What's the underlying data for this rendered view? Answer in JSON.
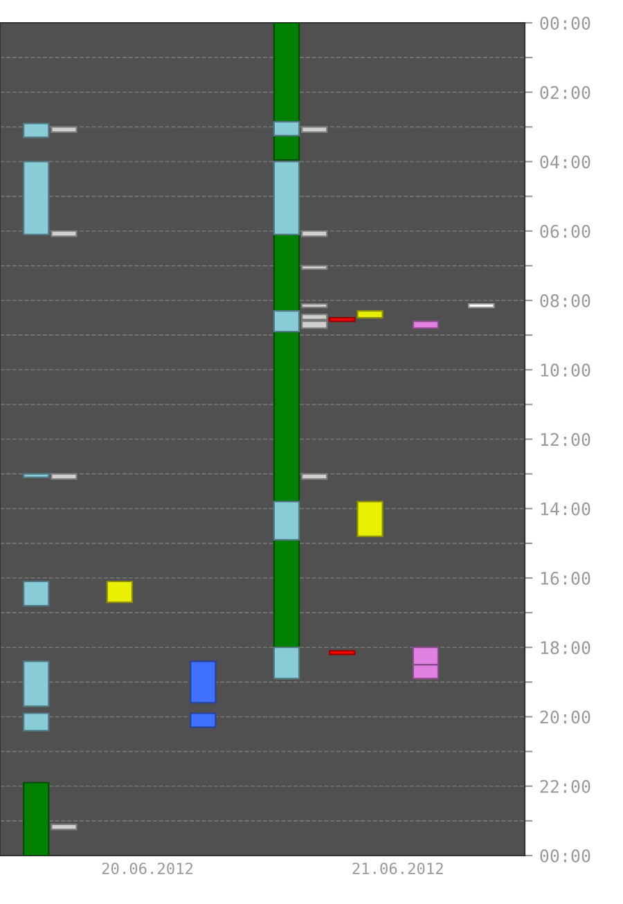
{
  "chart_data": {
    "type": "bar",
    "ylim": [
      24,
      0
    ],
    "grid": "y",
    "categories": [
      null,
      null,
      null,
      null,
      "20.06.2012",
      null,
      null,
      null,
      null,
      null,
      null,
      null,
      null,
      "21.06.2012",
      null,
      null,
      null,
      null
    ],
    "yticks": [
      {
        "value": 0,
        "label": "00:00"
      },
      {
        "value": 1,
        "label": null
      },
      {
        "value": 2,
        "label": "02:00"
      },
      {
        "value": 3,
        "label": null
      },
      {
        "value": 4,
        "label": "04:00"
      },
      {
        "value": 5,
        "label": null
      },
      {
        "value": 6,
        "label": "06:00"
      },
      {
        "value": 7,
        "label": null
      },
      {
        "value": 8,
        "label": "08:00"
      },
      {
        "value": 9,
        "label": null
      },
      {
        "value": 10,
        "label": "10:00"
      },
      {
        "value": 11,
        "label": null
      },
      {
        "value": 12,
        "label": "12:00"
      },
      {
        "value": 13,
        "label": null
      },
      {
        "value": 14,
        "label": "14:00"
      },
      {
        "value": 15,
        "label": null
      },
      {
        "value": 16,
        "label": "16:00"
      },
      {
        "value": 17,
        "label": null
      },
      {
        "value": 18,
        "label": "18:00"
      },
      {
        "value": 19,
        "label": null
      },
      {
        "value": 20,
        "label": "20:00"
      },
      {
        "value": 21,
        "label": null
      },
      {
        "value": 22,
        "label": "22:00"
      },
      {
        "value": 23,
        "label": null
      },
      {
        "value": 24,
        "label": "00:00"
      }
    ],
    "series": [
      {
        "color": "#008000",
        "base": [
          21.9,
          null,
          null,
          null,
          null,
          null,
          null,
          null,
          null,
          0,
          null,
          null,
          null,
          null,
          null,
          null,
          null,
          null
        ],
        "values": [
          2.1,
          null,
          null,
          null,
          null,
          null,
          null,
          null,
          null,
          2.85,
          null,
          null,
          null,
          null,
          null,
          null,
          null,
          null
        ]
      },
      {
        "color": "#008000",
        "base": [
          null,
          null,
          null,
          null,
          null,
          null,
          null,
          null,
          null,
          3.25,
          null,
          null,
          null,
          null,
          null,
          null,
          null,
          null
        ],
        "values": [
          null,
          null,
          null,
          null,
          null,
          null,
          null,
          null,
          null,
          0.7,
          null,
          null,
          null,
          null,
          null,
          null,
          null,
          null
        ]
      },
      {
        "color": "#008000",
        "base": [
          null,
          null,
          null,
          null,
          null,
          null,
          null,
          null,
          null,
          6.1,
          null,
          null,
          null,
          null,
          null,
          null,
          null,
          null
        ],
        "values": [
          null,
          null,
          null,
          null,
          null,
          null,
          null,
          null,
          null,
          2.2,
          null,
          null,
          null,
          null,
          null,
          null,
          null,
          null
        ]
      },
      {
        "color": "#008000",
        "base": [
          null,
          null,
          null,
          null,
          null,
          null,
          null,
          null,
          null,
          8.9,
          null,
          null,
          null,
          null,
          null,
          null,
          null,
          null
        ],
        "values": [
          null,
          null,
          null,
          null,
          null,
          null,
          null,
          null,
          null,
          4.9,
          null,
          null,
          null,
          null,
          null,
          null,
          null,
          null
        ]
      },
      {
        "color": "#008000",
        "base": [
          null,
          null,
          null,
          null,
          null,
          null,
          null,
          null,
          null,
          14.9,
          null,
          null,
          null,
          null,
          null,
          null,
          null,
          null
        ],
        "values": [
          null,
          null,
          null,
          null,
          null,
          null,
          null,
          null,
          null,
          3.1,
          null,
          null,
          null,
          null,
          null,
          null,
          null,
          null
        ]
      },
      {
        "color": "#88ccd8",
        "base": [
          2.9,
          null,
          null,
          null,
          null,
          null,
          null,
          null,
          null,
          2.85,
          null,
          null,
          null,
          null,
          null,
          null,
          null,
          null
        ],
        "values": [
          0.4,
          null,
          null,
          null,
          null,
          null,
          null,
          null,
          null,
          0.4,
          null,
          null,
          null,
          null,
          null,
          null,
          null,
          null
        ]
      },
      {
        "color": "#88ccd8",
        "base": [
          4.0,
          null,
          null,
          null,
          null,
          null,
          null,
          null,
          null,
          4.0,
          null,
          null,
          null,
          null,
          null,
          null,
          null,
          null
        ],
        "values": [
          2.1,
          null,
          null,
          null,
          null,
          null,
          null,
          null,
          null,
          2.1,
          null,
          null,
          null,
          null,
          null,
          null,
          null,
          null
        ]
      },
      {
        "color": "#88ccd8",
        "base": [
          13.0,
          null,
          null,
          null,
          null,
          null,
          null,
          null,
          null,
          8.3,
          null,
          null,
          null,
          null,
          null,
          null,
          null,
          null
        ],
        "values": [
          0.1,
          null,
          null,
          null,
          null,
          null,
          null,
          null,
          null,
          0.6,
          null,
          null,
          null,
          null,
          null,
          null,
          null,
          null
        ]
      },
      {
        "color": "#88ccd8",
        "base": [
          16.1,
          null,
          null,
          null,
          null,
          null,
          null,
          null,
          null,
          13.8,
          null,
          null,
          null,
          null,
          null,
          null,
          null,
          null
        ],
        "values": [
          0.7,
          null,
          null,
          null,
          null,
          null,
          null,
          null,
          null,
          1.1,
          null,
          null,
          null,
          null,
          null,
          null,
          null,
          null
        ]
      },
      {
        "color": "#88ccd8",
        "base": [
          18.4,
          null,
          null,
          null,
          null,
          null,
          null,
          null,
          null,
          18.0,
          null,
          null,
          null,
          null,
          null,
          null,
          null,
          null
        ],
        "values": [
          1.3,
          null,
          null,
          null,
          null,
          null,
          null,
          null,
          null,
          0.9,
          null,
          null,
          null,
          null,
          null,
          null,
          null,
          null
        ]
      },
      {
        "color": "#88ccd8",
        "base": [
          19.9,
          null,
          null,
          null,
          null,
          null,
          null,
          null,
          null,
          null,
          null,
          null,
          null,
          null,
          null,
          null,
          null,
          null
        ],
        "values": [
          0.5,
          null,
          null,
          null,
          null,
          null,
          null,
          null,
          null,
          null,
          null,
          null,
          null,
          null,
          null,
          null,
          null,
          null
        ]
      },
      {
        "color": "#d0d0d0",
        "base": [
          null,
          3.0,
          null,
          null,
          null,
          null,
          null,
          null,
          null,
          null,
          3.0,
          null,
          null,
          null,
          null,
          null,
          null,
          null
        ],
        "values": [
          null,
          0.15,
          null,
          null,
          null,
          null,
          null,
          null,
          null,
          null,
          0.15,
          null,
          null,
          null,
          null,
          null,
          null,
          null
        ]
      },
      {
        "color": "#d0d0d0",
        "base": [
          null,
          6.0,
          null,
          null,
          null,
          null,
          null,
          null,
          null,
          null,
          6.0,
          null,
          null,
          null,
          null,
          null,
          null,
          null
        ],
        "values": [
          null,
          0.15,
          null,
          null,
          null,
          null,
          null,
          null,
          null,
          null,
          0.15,
          null,
          null,
          null,
          null,
          null,
          null,
          null
        ]
      },
      {
        "color": "#d0d0d0",
        "base": [
          null,
          13.0,
          null,
          null,
          null,
          null,
          null,
          null,
          null,
          null,
          7.0,
          null,
          null,
          null,
          null,
          null,
          null,
          null
        ],
        "values": [
          null,
          0.15,
          null,
          null,
          null,
          null,
          null,
          null,
          null,
          null,
          0.1,
          null,
          null,
          null,
          null,
          null,
          null,
          null
        ]
      },
      {
        "color": "#d0d0d0",
        "base": [
          null,
          23.1,
          null,
          null,
          null,
          null,
          null,
          null,
          null,
          null,
          8.1,
          null,
          null,
          null,
          null,
          null,
          null,
          null
        ],
        "values": [
          null,
          0.15,
          null,
          null,
          null,
          null,
          null,
          null,
          null,
          null,
          0.1,
          null,
          null,
          null,
          null,
          null,
          null,
          null
        ]
      },
      {
        "color": "#d0d0d0",
        "base": [
          null,
          null,
          null,
          null,
          null,
          null,
          null,
          null,
          null,
          null,
          8.4,
          null,
          null,
          null,
          null,
          null,
          null,
          null
        ],
        "values": [
          null,
          null,
          null,
          null,
          null,
          null,
          null,
          null,
          null,
          null,
          0.15,
          null,
          null,
          null,
          null,
          null,
          null,
          null
        ]
      },
      {
        "color": "#d0d0d0",
        "base": [
          null,
          null,
          null,
          null,
          null,
          null,
          null,
          null,
          null,
          null,
          8.6,
          null,
          null,
          null,
          null,
          null,
          null,
          null
        ],
        "values": [
          null,
          null,
          null,
          null,
          null,
          null,
          null,
          null,
          null,
          null,
          0.2,
          null,
          null,
          null,
          null,
          null,
          null,
          null
        ]
      },
      {
        "color": "#d0d0d0",
        "base": [
          null,
          null,
          null,
          null,
          null,
          null,
          null,
          null,
          null,
          null,
          13.0,
          null,
          null,
          null,
          null,
          null,
          null,
          null
        ],
        "values": [
          null,
          null,
          null,
          null,
          null,
          null,
          null,
          null,
          null,
          null,
          0.15,
          null,
          null,
          null,
          null,
          null,
          null,
          null
        ]
      },
      {
        "color": "#e8f000",
        "base": [
          null,
          null,
          null,
          16.1,
          null,
          null,
          null,
          null,
          null,
          null,
          null,
          null,
          8.3,
          null,
          null,
          null,
          null,
          null
        ],
        "values": [
          null,
          null,
          null,
          0.6,
          null,
          null,
          null,
          null,
          null,
          null,
          null,
          null,
          0.2,
          null,
          null,
          null,
          null,
          null
        ]
      },
      {
        "color": "#e8f000",
        "base": [
          null,
          null,
          null,
          null,
          null,
          null,
          null,
          null,
          null,
          null,
          null,
          null,
          13.8,
          null,
          null,
          null,
          null,
          null
        ],
        "values": [
          null,
          null,
          null,
          null,
          null,
          null,
          null,
          null,
          null,
          null,
          null,
          null,
          1.0,
          null,
          null,
          null,
          null,
          null
        ]
      },
      {
        "color": "#4070ff",
        "base": [
          null,
          null,
          null,
          null,
          null,
          null,
          18.4,
          null,
          null,
          null,
          null,
          null,
          null,
          null,
          null,
          null,
          null,
          null
        ],
        "values": [
          null,
          null,
          null,
          null,
          null,
          null,
          1.2,
          null,
          null,
          null,
          null,
          null,
          null,
          null,
          null,
          null,
          null,
          null
        ]
      },
      {
        "color": "#4070ff",
        "base": [
          null,
          null,
          null,
          null,
          null,
          null,
          19.9,
          null,
          null,
          null,
          null,
          null,
          null,
          null,
          null,
          null,
          null,
          null
        ],
        "values": [
          null,
          null,
          null,
          null,
          null,
          null,
          0.4,
          null,
          null,
          null,
          null,
          null,
          null,
          null,
          null,
          null,
          null,
          null
        ]
      },
      {
        "color": "#ff0000",
        "base": [
          null,
          null,
          null,
          null,
          null,
          null,
          null,
          null,
          null,
          null,
          null,
          8.5,
          null,
          null,
          null,
          null,
          null,
          null
        ],
        "values": [
          null,
          null,
          null,
          null,
          null,
          null,
          null,
          null,
          null,
          null,
          null,
          0.1,
          null,
          null,
          null,
          null,
          null,
          null
        ]
      },
      {
        "color": "#ff0000",
        "base": [
          null,
          null,
          null,
          null,
          null,
          null,
          null,
          null,
          null,
          null,
          null,
          18.1,
          null,
          null,
          null,
          null,
          null,
          null
        ],
        "values": [
          null,
          null,
          null,
          null,
          null,
          null,
          null,
          null,
          null,
          null,
          null,
          0.1,
          null,
          null,
          null,
          null,
          null,
          null
        ]
      },
      {
        "color": "#e080e0",
        "base": [
          null,
          null,
          null,
          null,
          null,
          null,
          null,
          null,
          null,
          null,
          null,
          null,
          null,
          null,
          8.6,
          null,
          null,
          null
        ],
        "values": [
          null,
          null,
          null,
          null,
          null,
          null,
          null,
          null,
          null,
          null,
          null,
          null,
          null,
          null,
          0.2,
          null,
          null,
          null
        ]
      },
      {
        "color": "#e080e0",
        "base": [
          null,
          null,
          null,
          null,
          null,
          null,
          null,
          null,
          null,
          null,
          null,
          null,
          null,
          null,
          18.0,
          null,
          null,
          null
        ],
        "values": [
          null,
          null,
          null,
          null,
          null,
          null,
          null,
          null,
          null,
          null,
          null,
          null,
          null,
          null,
          0.5,
          null,
          null,
          null
        ]
      },
      {
        "color": "#e080e0",
        "base": [
          null,
          null,
          null,
          null,
          null,
          null,
          null,
          null,
          null,
          null,
          null,
          null,
          null,
          null,
          18.5,
          null,
          null,
          null
        ],
        "values": [
          null,
          null,
          null,
          null,
          null,
          null,
          null,
          null,
          null,
          null,
          null,
          null,
          null,
          null,
          0.4,
          null,
          null,
          null
        ]
      },
      {
        "color": "#ffffff",
        "base": [
          null,
          null,
          null,
          null,
          null,
          null,
          null,
          null,
          null,
          null,
          null,
          null,
          null,
          null,
          null,
          null,
          8.1,
          null
        ],
        "values": [
          null,
          null,
          null,
          null,
          null,
          null,
          null,
          null,
          null,
          null,
          null,
          null,
          null,
          null,
          null,
          null,
          0.1,
          null
        ]
      }
    ]
  }
}
